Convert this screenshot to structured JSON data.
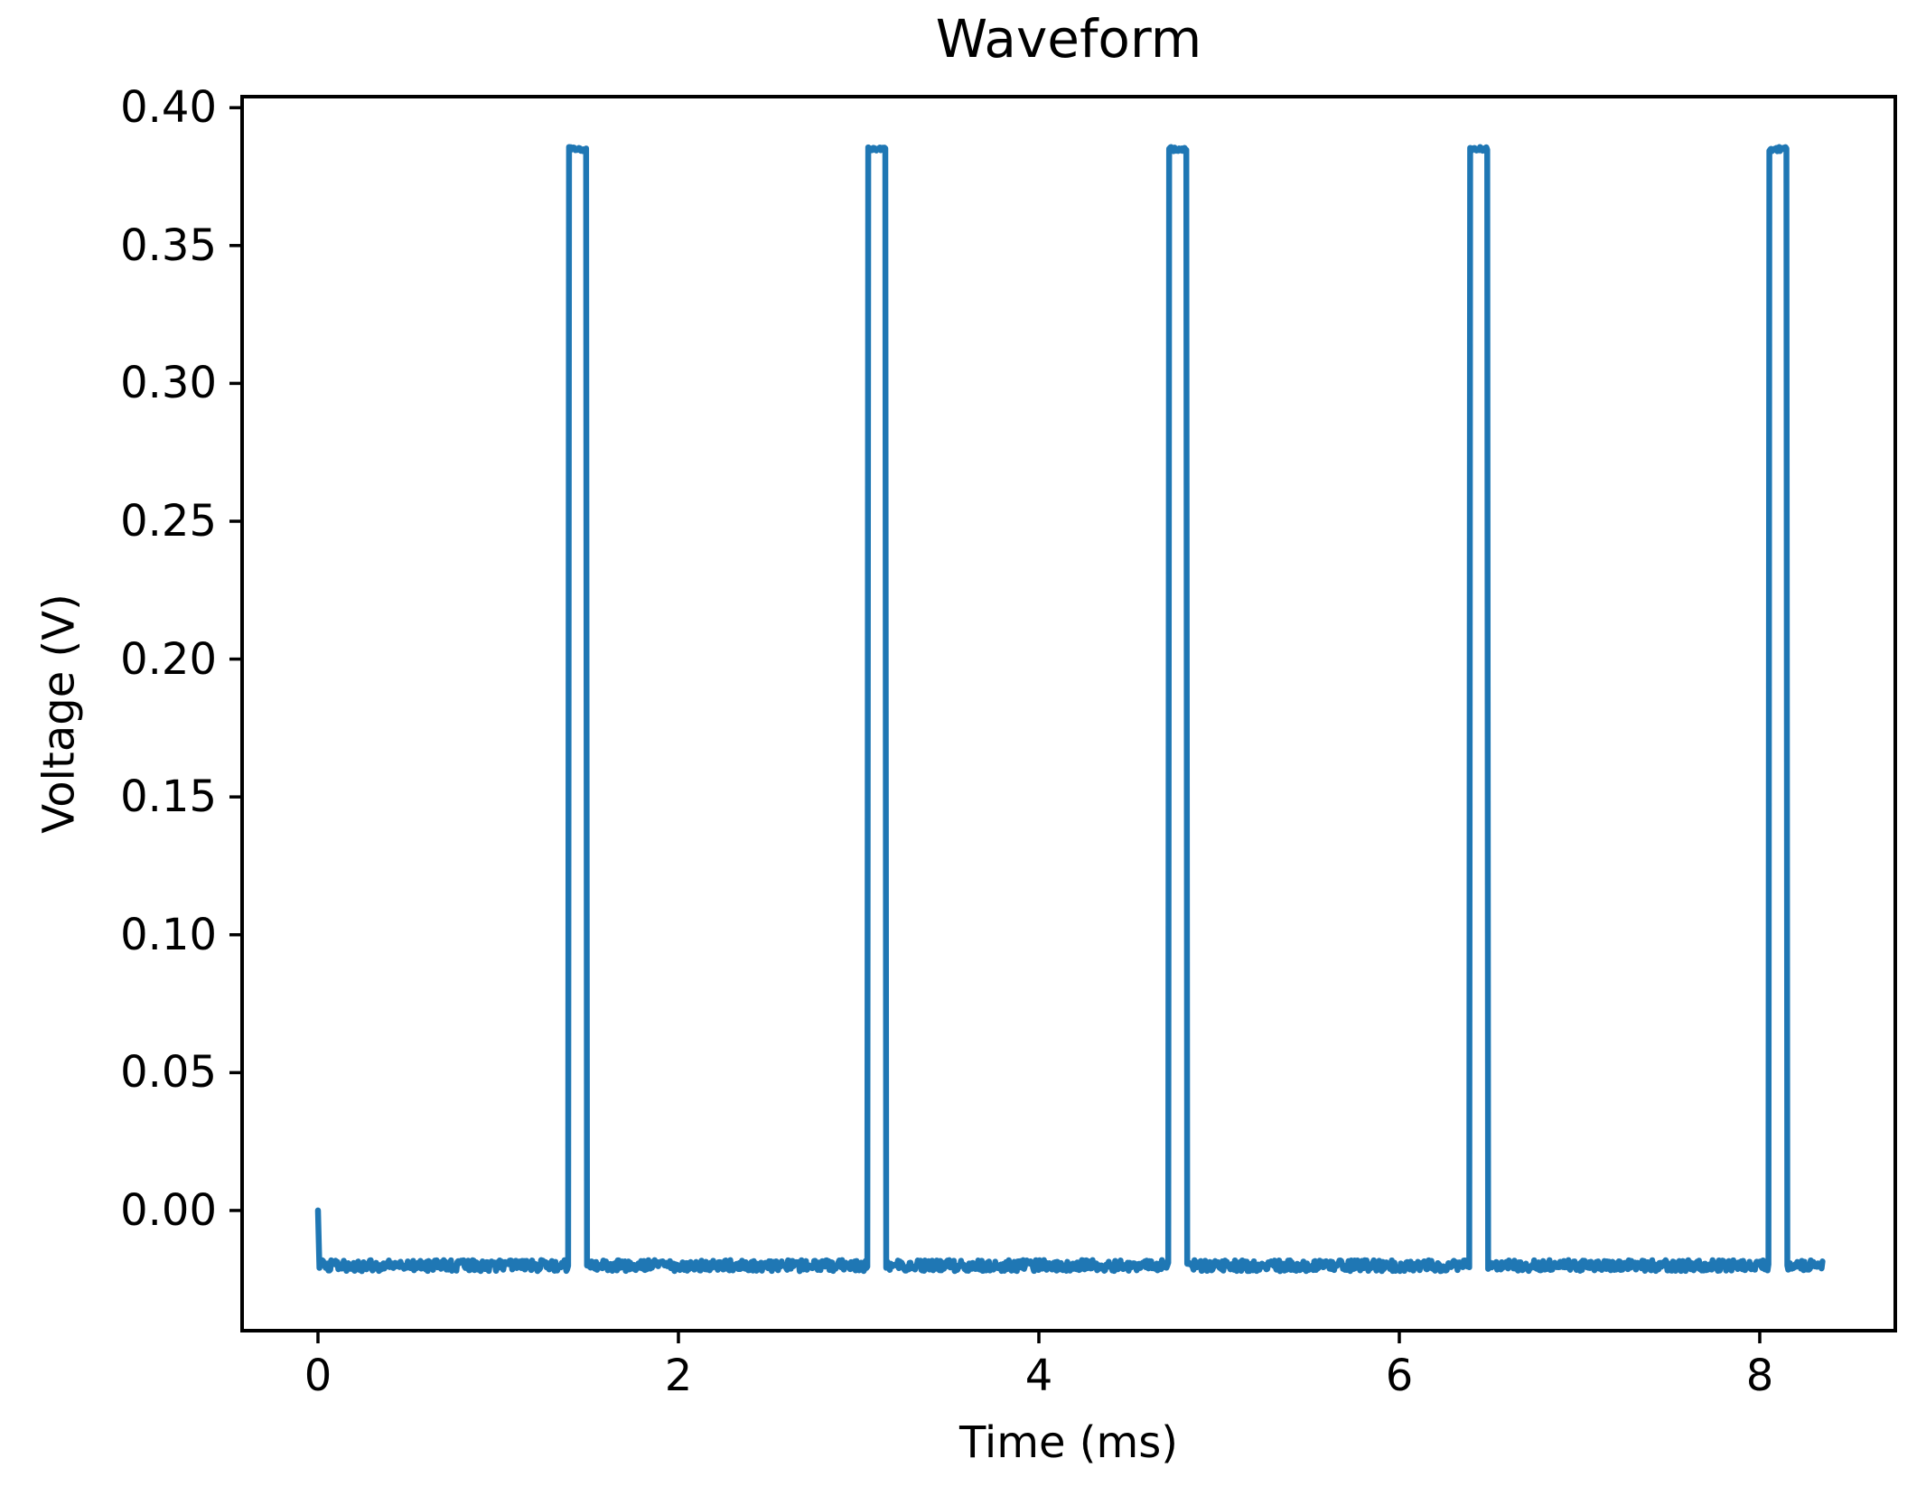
{
  "chart_data": {
    "type": "line",
    "title": "Waveform",
    "xlabel": "Time (ms)",
    "ylabel": "Voltage (V)",
    "grid": false,
    "legend": null,
    "line_color": "#1f77b4",
    "axis_color": "#000000",
    "background_color": "#ffffff",
    "xlim": [
      -0.421,
      8.752
    ],
    "ylim": [
      -0.0436,
      0.404
    ],
    "xticks": [
      {
        "value": 0,
        "label": "0"
      },
      {
        "value": 2,
        "label": "2"
      },
      {
        "value": 4,
        "label": "4"
      },
      {
        "value": 6,
        "label": "6"
      },
      {
        "value": 8,
        "label": "8"
      }
    ],
    "yticks": [
      {
        "value": 0.4,
        "label": "0.40"
      },
      {
        "value": 0.35,
        "label": "0.35"
      },
      {
        "value": 0.3,
        "label": "0.30"
      },
      {
        "value": 0.25,
        "label": "0.25"
      },
      {
        "value": 0.2,
        "label": "0.20"
      },
      {
        "value": 0.15,
        "label": "0.15"
      },
      {
        "value": 0.1,
        "label": "0.10"
      },
      {
        "value": 0.05,
        "label": "0.05"
      },
      {
        "value": 0.0,
        "label": "0.00"
      }
    ],
    "series": [
      {
        "name": "voltage",
        "description": "Pulse train: noisy baseline at -0.02 V with five narrow pulses reaching 0.385 V; first sample starts at 0 V",
        "t_start_ms": 0.0,
        "t_end_ms": 8.35,
        "initial_value_v": 0.0,
        "baseline_v": -0.02,
        "noise_amplitude_v": 0.002,
        "pulse_peak_v": 0.385,
        "pulse_width_ms": 0.1,
        "pulse_centers_ms": [
          1.44,
          3.1,
          4.77,
          6.44,
          8.1
        ],
        "pulse_period_ms": 1.665
      }
    ]
  }
}
